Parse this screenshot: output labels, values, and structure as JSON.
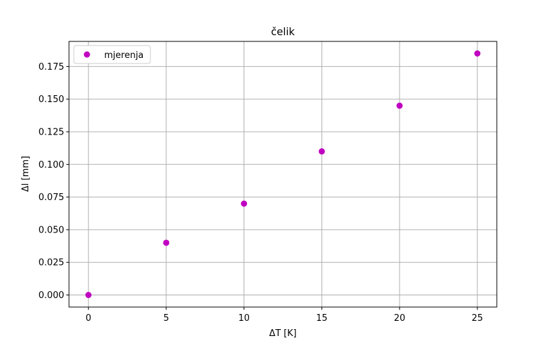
{
  "chart_data": {
    "type": "scatter",
    "title": "čelik",
    "xlabel": "ΔT [K]",
    "ylabel": "Δl [mm]",
    "xlim": [
      -1.25,
      26.25
    ],
    "ylim": [
      -0.00925,
      0.19425
    ],
    "xticks": [
      0,
      5,
      10,
      15,
      20,
      25
    ],
    "xtick_labels": [
      "0",
      "5",
      "10",
      "15",
      "20",
      "25"
    ],
    "yticks": [
      0,
      0.025,
      0.05,
      0.075,
      0.1,
      0.125,
      0.15,
      0.175
    ],
    "ytick_labels": [
      "0.000",
      "0.025",
      "0.050",
      "0.075",
      "0.100",
      "0.125",
      "0.150",
      "0.175"
    ],
    "grid": true,
    "legend": {
      "position": "top-left",
      "entries": [
        "mjerenja"
      ]
    },
    "series": [
      {
        "name": "mjerenja",
        "color": "#c000c0",
        "x": [
          0,
          5,
          10,
          15,
          20,
          25
        ],
        "y": [
          0,
          0.04,
          0.07,
          0.11,
          0.145,
          0.185
        ]
      }
    ]
  }
}
